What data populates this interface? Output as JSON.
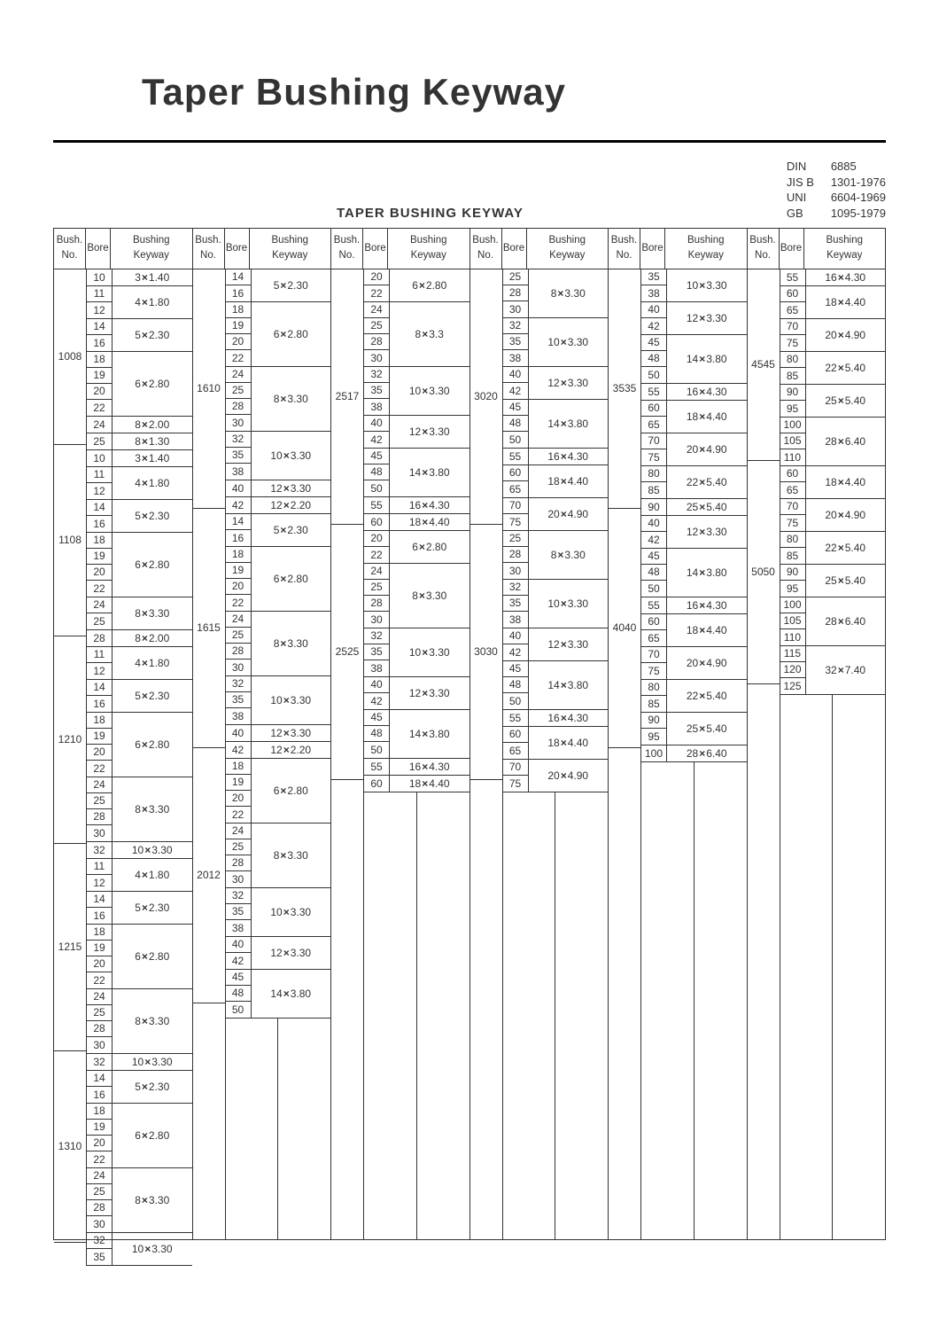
{
  "title": "Taper Bushing Keyway",
  "subtitle": "TAPER BUSHING KEYWAY",
  "standards": [
    {
      "k": "DIN",
      "v": "6885"
    },
    {
      "k": "JIS B",
      "v": "1301-1976"
    },
    {
      "k": "UNI",
      "v": "6604-1969"
    },
    {
      "k": "GB",
      "v": "1095-1979"
    }
  ],
  "headers": {
    "bush": "Bush.\nNo.",
    "bore": "Bore",
    "key": "Bushing\nKeyway"
  },
  "mult": "×",
  "columns": [
    {
      "bushings": [
        {
          "no": "1008",
          "groups": [
            {
              "bores": [
                "10"
              ],
              "key": "3×1.40"
            },
            {
              "bores": [
                "11",
                "12"
              ],
              "key": "4×1.80"
            },
            {
              "bores": [
                "14",
                "16"
              ],
              "key": "5×2.30"
            },
            {
              "bores": [
                "18",
                "19",
                "20",
                "22"
              ],
              "key": "6×2.80"
            },
            {
              "bores": [
                "24"
              ],
              "key": "8×2.00"
            },
            {
              "bores": [
                "25"
              ],
              "key": "8×1.30"
            }
          ]
        },
        {
          "no": "1108",
          "groups": [
            {
              "bores": [
                "10"
              ],
              "key": "3×1.40"
            },
            {
              "bores": [
                "11",
                "12"
              ],
              "key": "4×1.80"
            },
            {
              "bores": [
                "14",
                "16"
              ],
              "key": "5×2.30"
            },
            {
              "bores": [
                "18",
                "19",
                "20",
                "22"
              ],
              "key": "6×2.80"
            },
            {
              "bores": [
                "24",
                "25"
              ],
              "key": "8×3.30"
            },
            {
              "bores": [
                "28"
              ],
              "key": "8×2.00"
            }
          ]
        },
        {
          "no": "1210",
          "groups": [
            {
              "bores": [
                "11",
                "12"
              ],
              "key": "4×1.80"
            },
            {
              "bores": [
                "14",
                "16"
              ],
              "key": "5×2.30"
            },
            {
              "bores": [
                "18",
                "19",
                "20",
                "22"
              ],
              "key": "6×2.80"
            },
            {
              "bores": [
                "24",
                "25",
                "28",
                "30"
              ],
              "key": "8×3.30"
            },
            {
              "bores": [
                "32"
              ],
              "key": "10×3.30"
            }
          ]
        },
        {
          "no": "1215",
          "groups": [
            {
              "bores": [
                "11",
                "12"
              ],
              "key": "4×1.80"
            },
            {
              "bores": [
                "14",
                "16"
              ],
              "key": "5×2.30"
            },
            {
              "bores": [
                "18",
                "19",
                "20",
                "22"
              ],
              "key": "6×2.80"
            },
            {
              "bores": [
                "24",
                "25",
                "28",
                "30"
              ],
              "key": "8×3.30"
            },
            {
              "bores": [
                "32"
              ],
              "key": "10×3.30"
            }
          ]
        },
        {
          "no": "1310",
          "groups": [
            {
              "bores": [
                "14",
                "16"
              ],
              "key": "5×2.30"
            },
            {
              "bores": [
                "18",
                "19",
                "20",
                "22"
              ],
              "key": "6×2.80"
            },
            {
              "bores": [
                "24",
                "25",
                "28",
                "30"
              ],
              "key": "8×3.30"
            },
            {
              "bores": [
                "32",
                "35"
              ],
              "key": "10×3.30"
            }
          ]
        }
      ]
    },
    {
      "bushings": [
        {
          "no": "1610",
          "groups": [
            {
              "bores": [
                "14",
                "16"
              ],
              "key": "5×2.30"
            },
            {
              "bores": [
                "18",
                "19",
                "20",
                "22"
              ],
              "key": "6×2.80"
            },
            {
              "bores": [
                "24",
                "25",
                "28",
                "30"
              ],
              "key": "8×3.30"
            },
            {
              "bores": [
                "32",
                "35",
                "38"
              ],
              "key": "10×3.30"
            },
            {
              "bores": [
                "40"
              ],
              "key": "12×3.30"
            },
            {
              "bores": [
                "42"
              ],
              "key": "12×2.20"
            }
          ]
        },
        {
          "no": "1615",
          "groups": [
            {
              "bores": [
                "14",
                "16"
              ],
              "key": "5×2.30"
            },
            {
              "bores": [
                "18",
                "19",
                "20",
                "22"
              ],
              "key": "6×2.80"
            },
            {
              "bores": [
                "24",
                "25",
                "28",
                "30"
              ],
              "key": "8×3.30"
            },
            {
              "bores": [
                "32",
                "35",
                "38"
              ],
              "key": "10×3.30"
            },
            {
              "bores": [
                "40"
              ],
              "key": "12×3.30"
            },
            {
              "bores": [
                "42"
              ],
              "key": "12×2.20"
            }
          ]
        },
        {
          "no": "2012",
          "groups": [
            {
              "bores": [
                "18",
                "19",
                "20",
                "22"
              ],
              "key": "6×2.80"
            },
            {
              "bores": [
                "24",
                "25",
                "28",
                "30"
              ],
              "key": "8×3.30"
            },
            {
              "bores": [
                "32",
                "35",
                "38"
              ],
              "key": "10×3.30"
            },
            {
              "bores": [
                "40",
                "42"
              ],
              "key": "12×3.30"
            },
            {
              "bores": [
                "45",
                "48",
                "50"
              ],
              "key": "14×3.80"
            }
          ]
        }
      ]
    },
    {
      "bushings": [
        {
          "no": "2517",
          "groups": [
            {
              "bores": [
                "20",
                "22"
              ],
              "key": "6×2.80"
            },
            {
              "bores": [
                "24",
                "25",
                "28",
                "30"
              ],
              "key": "8×3.3"
            },
            {
              "bores": [
                "32",
                "35",
                "38"
              ],
              "key": "10×3.30"
            },
            {
              "bores": [
                "40",
                "42"
              ],
              "key": "12×3.30"
            },
            {
              "bores": [
                "45",
                "48",
                "50"
              ],
              "key": "14×3.80"
            },
            {
              "bores": [
                "55"
              ],
              "key": "16×4.30"
            },
            {
              "bores": [
                "60"
              ],
              "key": "18×4.40"
            }
          ]
        },
        {
          "no": "2525",
          "groups": [
            {
              "bores": [
                "20",
                "22"
              ],
              "key": "6×2.80"
            },
            {
              "bores": [
                "24",
                "25",
                "28",
                "30"
              ],
              "key": "8×3.30"
            },
            {
              "bores": [
                "32",
                "35",
                "38"
              ],
              "key": "10×3.30"
            },
            {
              "bores": [
                "40",
                "42"
              ],
              "key": "12×3.30"
            },
            {
              "bores": [
                "45",
                "48",
                "50"
              ],
              "key": "14×3.80"
            },
            {
              "bores": [
                "55"
              ],
              "key": "16×4.30"
            },
            {
              "bores": [
                "60"
              ],
              "key": "18×4.40"
            }
          ]
        }
      ]
    },
    {
      "bushings": [
        {
          "no": "3020",
          "groups": [
            {
              "bores": [
                "25",
                "28",
                "30"
              ],
              "key": "8×3.30"
            },
            {
              "bores": [
                "32",
                "35",
                "38"
              ],
              "key": "10×3.30"
            },
            {
              "bores": [
                "40",
                "42"
              ],
              "key": "12×3.30"
            },
            {
              "bores": [
                "45",
                "48",
                "50"
              ],
              "key": "14×3.80"
            },
            {
              "bores": [
                "55"
              ],
              "key": "16×4.30"
            },
            {
              "bores": [
                "60",
                "65"
              ],
              "key": "18×4.40"
            },
            {
              "bores": [
                "70",
                "75"
              ],
              "key": "20×4.90"
            }
          ]
        },
        {
          "no": "3030",
          "groups": [
            {
              "bores": [
                "25",
                "28",
                "30"
              ],
              "key": "8×3.30"
            },
            {
              "bores": [
                "32",
                "35",
                "38"
              ],
              "key": "10×3.30"
            },
            {
              "bores": [
                "40",
                "42"
              ],
              "key": "12×3.30"
            },
            {
              "bores": [
                "45",
                "48",
                "50"
              ],
              "key": "14×3.80"
            },
            {
              "bores": [
                "55"
              ],
              "key": "16×4.30"
            },
            {
              "bores": [
                "60",
                "65"
              ],
              "key": "18×4.40"
            },
            {
              "bores": [
                "70",
                "75"
              ],
              "key": "20×4.90"
            }
          ]
        }
      ]
    },
    {
      "bushings": [
        {
          "no": "3535",
          "groups": [
            {
              "bores": [
                "35",
                "38"
              ],
              "key": "10×3.30"
            },
            {
              "bores": [
                "40",
                "42"
              ],
              "key": "12×3.30"
            },
            {
              "bores": [
                "45",
                "48",
                "50"
              ],
              "key": "14×3.80"
            },
            {
              "bores": [
                "55"
              ],
              "key": "16×4.30"
            },
            {
              "bores": [
                "60",
                "65"
              ],
              "key": "18×4.40"
            },
            {
              "bores": [
                "70",
                "75"
              ],
              "key": "20×4.90"
            },
            {
              "bores": [
                "80",
                "85"
              ],
              "key": "22×5.40"
            },
            {
              "bores": [
                "90"
              ],
              "key": "25×5.40"
            }
          ]
        },
        {
          "no": "4040",
          "groups": [
            {
              "bores": [
                "40",
                "42"
              ],
              "key": "12×3.30"
            },
            {
              "bores": [
                "45",
                "48",
                "50"
              ],
              "key": "14×3.80"
            },
            {
              "bores": [
                "55"
              ],
              "key": "16×4.30"
            },
            {
              "bores": [
                "60",
                "65"
              ],
              "key": "18×4.40"
            },
            {
              "bores": [
                "70",
                "75"
              ],
              "key": "20×4.90"
            },
            {
              "bores": [
                "80",
                "85"
              ],
              "key": "22×5.40"
            },
            {
              "bores": [
                "90",
                "95"
              ],
              "key": "25×5.40"
            },
            {
              "bores": [
                "100"
              ],
              "key": "28×6.40"
            }
          ]
        }
      ]
    },
    {
      "bushings": [
        {
          "no": "4545",
          "groups": [
            {
              "bores": [
                "55"
              ],
              "key": "16×4.30"
            },
            {
              "bores": [
                "60",
                "65"
              ],
              "key": "18×4.40"
            },
            {
              "bores": [
                "70",
                "75"
              ],
              "key": "20×4.90"
            },
            {
              "bores": [
                "80",
                "85"
              ],
              "key": "22×5.40"
            },
            {
              "bores": [
                "90",
                "95"
              ],
              "key": "25×5.40"
            },
            {
              "bores": [
                "100",
                "105",
                "110"
              ],
              "key": "28×6.40"
            }
          ]
        },
        {
          "no": "5050",
          "groups": [
            {
              "bores": [
                "60",
                "65"
              ],
              "key": "18×4.40"
            },
            {
              "bores": [
                "70",
                "75"
              ],
              "key": "20×4.90"
            },
            {
              "bores": [
                "80",
                "85"
              ],
              "key": "22×5.40"
            },
            {
              "bores": [
                "90",
                "95"
              ],
              "key": "25×5.40"
            },
            {
              "bores": [
                "100",
                "105",
                "110"
              ],
              "key": "28×6.40"
            },
            {
              "bores": [
                "115",
                "120",
                "125"
              ],
              "key": "32×7.40"
            }
          ]
        }
      ]
    }
  ]
}
